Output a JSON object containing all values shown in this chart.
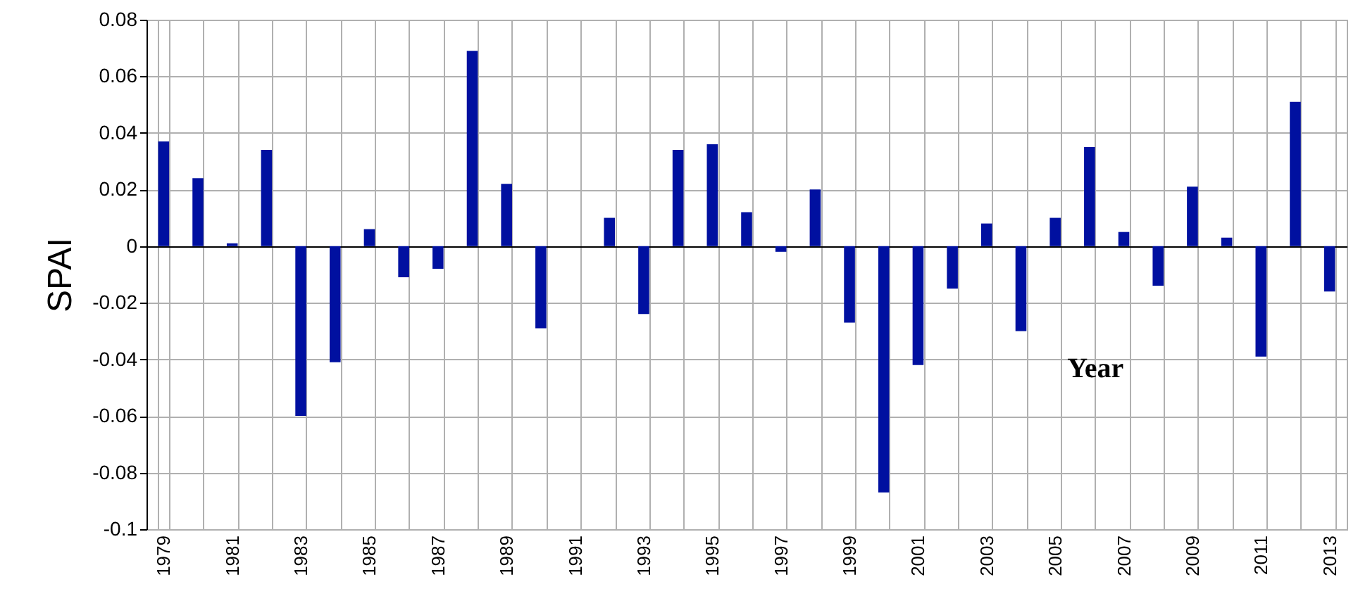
{
  "chart_data": {
    "type": "bar",
    "xlabel": "Year",
    "ylabel": "SPAI",
    "categories": [
      "1979",
      null,
      "1981",
      null,
      "1983",
      null,
      "1985",
      null,
      "1987",
      null,
      "1989",
      null,
      "1991",
      null,
      "1993",
      null,
      "1995",
      null,
      "1997",
      null,
      "1999",
      null,
      "2001",
      null,
      "2003",
      null,
      "2005",
      null,
      "2007",
      null,
      "2009",
      null,
      "2011",
      null,
      "2013"
    ],
    "values": [
      0.037,
      0.024,
      0.001,
      0.034,
      -0.06,
      -0.041,
      0.006,
      -0.011,
      -0.008,
      0.069,
      0.022,
      -0.029,
      0,
      0.01,
      -0.024,
      0.034,
      0.036,
      0.012,
      -0.002,
      0.02,
      -0.027,
      -0.087,
      -0.042,
      -0.015,
      0.008,
      -0.03,
      0.01,
      0.035,
      0.005,
      -0.014,
      0.021,
      0.003,
      -0.039,
      0.051,
      -0.016
    ],
    "color": "#0010a0",
    "ylim": [
      -0.1,
      0.08
    ],
    "yticks": [
      -0.1,
      -0.08,
      -0.06,
      -0.04,
      -0.02,
      0,
      0.02,
      0.04,
      0.06,
      0.08
    ],
    "grid": true
  }
}
